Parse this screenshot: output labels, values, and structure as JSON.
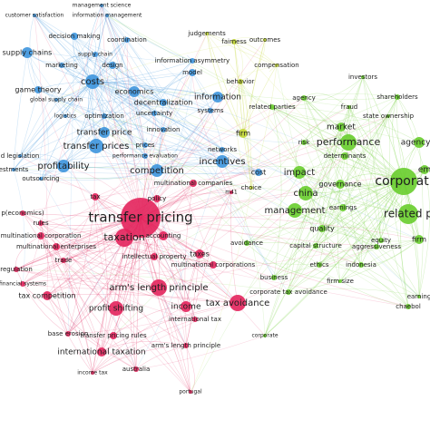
{
  "clusters": [
    {
      "color": "#3d95dd",
      "nodes": [
        "management science",
        "information management",
        "customer satisfaction",
        "decision making",
        "coordination",
        "supply chains",
        "supply chain",
        "marketing",
        "design",
        "information asymmetry",
        "model",
        "game theory",
        "costs",
        "global supply chain",
        "economics",
        "decentralization",
        "information",
        "logistics",
        "optimization",
        "uncertainty",
        "systems",
        "transfer price",
        "innovation",
        "transfer prices",
        "prices",
        "performance evaluation",
        "profitability",
        "competition",
        "networks",
        "incentives",
        "d legislation",
        "estments",
        "outsourcing",
        "cost"
      ]
    },
    {
      "color": "#c3d834",
      "nodes": [
        "judgements",
        "fairness",
        "outcomes",
        "compensation",
        "behavior",
        "firm",
        "choice"
      ]
    },
    {
      "color": "#68cd2c",
      "nodes": [
        "investors",
        "agency",
        "shareholders",
        "fraud",
        "related parties",
        "state ownership",
        "market",
        "performance",
        "agency c",
        "risk",
        "determinants",
        "impact",
        "corporati",
        "em",
        "governance",
        "china",
        "management",
        "earnings",
        "related p",
        "quality",
        "equity",
        "firm",
        "capital structure",
        "aggressiveness",
        "avoidance",
        "business",
        "ethics",
        "indonesia",
        "firm size",
        "corporate tax avoidance",
        "earning",
        "chaebol",
        "corporate"
      ]
    },
    {
      "color": "#e3245c",
      "nodes": [
        "transfer pricing",
        "policy",
        "multinational companies",
        "m41",
        "taxation",
        "accounting",
        "taxes",
        "p(economics)",
        "rules",
        "multinational corporation",
        "multinational enterprises",
        "trade",
        "intellectual property",
        "multinational corporations",
        "regulation",
        "financial systems",
        "arm's length principle",
        "tax avoidance",
        "profit shifting",
        "income",
        "tax competition",
        "international tax",
        "base erosion",
        "transfer pricing rules",
        "arm's length principle",
        "international taxation",
        "australia",
        "income tax",
        "portugal",
        "tax"
      ]
    }
  ]
}
